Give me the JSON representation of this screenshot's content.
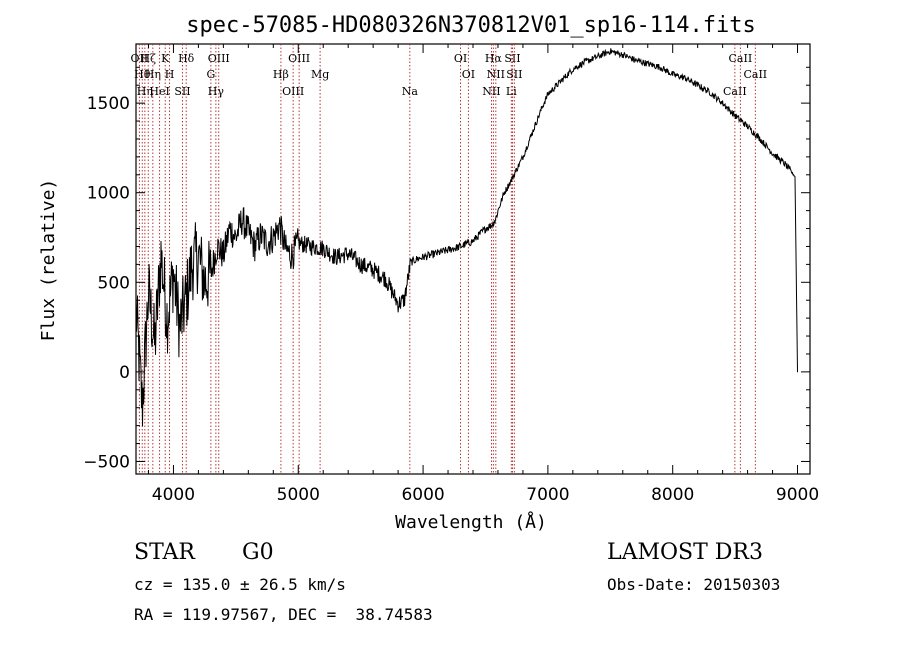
{
  "chart_data": {
    "type": "line",
    "title": "spec-57085-HD080326N370812V01_sp16-114.fits",
    "xlabel": "Wavelength (Å)",
    "ylabel": "Flux (relative)",
    "xlim": [
      3700,
      9100
    ],
    "ylim": [
      -570,
      1830
    ],
    "x_ticks": [
      4000,
      5000,
      6000,
      7000,
      8000,
      9000
    ],
    "x_tick_labels": [
      "4000",
      "5000",
      "6000",
      "7000",
      "8000",
      "9000"
    ],
    "y_ticks": [
      -500,
      0,
      500,
      1000,
      1500
    ],
    "y_tick_labels": [
      "−500",
      "0",
      "500",
      "1000",
      "1500"
    ],
    "series": [
      {
        "name": "spectrum",
        "color": "#000000",
        "x": [
          3700,
          3750,
          3800,
          3850,
          3900,
          3950,
          4000,
          4050,
          4100,
          4150,
          4200,
          4250,
          4300,
          4350,
          4400,
          4450,
          4500,
          4550,
          4600,
          4650,
          4700,
          4750,
          4800,
          4850,
          4900,
          4950,
          5000,
          5100,
          5200,
          5300,
          5400,
          5500,
          5600,
          5700,
          5800,
          5850,
          5900,
          5950,
          6000,
          6100,
          6200,
          6300,
          6400,
          6500,
          6550,
          6580,
          6600,
          6650,
          6700,
          6750,
          6800,
          6850,
          6900,
          6950,
          7000,
          7100,
          7200,
          7300,
          7400,
          7500,
          7600,
          7700,
          7800,
          7900,
          8000,
          8100,
          8200,
          8300,
          8400,
          8500,
          8550,
          8600,
          8700,
          8800,
          8900,
          8980,
          9000
        ],
        "y": [
          350,
          -200,
          450,
          150,
          650,
          300,
          550,
          250,
          400,
          600,
          650,
          500,
          550,
          700,
          650,
          800,
          750,
          850,
          780,
          700,
          760,
          720,
          750,
          820,
          680,
          650,
          720,
          700,
          690,
          640,
          660,
          600,
          570,
          520,
          380,
          400,
          610,
          630,
          640,
          660,
          680,
          700,
          730,
          800,
          820,
          850,
          900,
          1000,
          1060,
          1130,
          1200,
          1290,
          1380,
          1470,
          1550,
          1620,
          1690,
          1730,
          1760,
          1790,
          1770,
          1740,
          1720,
          1700,
          1660,
          1640,
          1600,
          1560,
          1500,
          1430,
          1400,
          1370,
          1300,
          1220,
          1160,
          1090,
          0
        ]
      }
    ],
    "line_markers": [
      {
        "x": 3727,
        "label": "OII"
      },
      {
        "x": 3750,
        "label": "Hθ"
      },
      {
        "x": 3771,
        "label": "Hη"
      },
      {
        "x": 3798,
        "label": "Hζ"
      },
      {
        "x": 3835,
        "label": "Hη"
      },
      {
        "x": 3889,
        "label": "HeI"
      },
      {
        "x": 3934,
        "label": "K"
      },
      {
        "x": 3969,
        "label": "H"
      },
      {
        "x": 4072,
        "label": "SII"
      },
      {
        "x": 4102,
        "label": "Hδ"
      },
      {
        "x": 4300,
        "label": "G"
      },
      {
        "x": 4340,
        "label": "Hγ"
      },
      {
        "x": 4363,
        "label": "OIII"
      },
      {
        "x": 4861,
        "label": "Hβ"
      },
      {
        "x": 4959,
        "label": "OIII"
      },
      {
        "x": 5007,
        "label": "OIII"
      },
      {
        "x": 5175,
        "label": "Mg"
      },
      {
        "x": 5894,
        "label": "Na"
      },
      {
        "x": 6300,
        "label": "OI"
      },
      {
        "x": 6363,
        "label": "OI"
      },
      {
        "x": 6548,
        "label": "NII"
      },
      {
        "x": 6563,
        "label": "Hα"
      },
      {
        "x": 6583,
        "label": "NII"
      },
      {
        "x": 6707,
        "label": "Li"
      },
      {
        "x": 6716,
        "label": "SII"
      },
      {
        "x": 6731,
        "label": "SII"
      },
      {
        "x": 8498,
        "label": "CaII"
      },
      {
        "x": 8542,
        "label": "CaII"
      },
      {
        "x": 8662,
        "label": "CaII"
      }
    ]
  },
  "info": {
    "object_type": "STAR",
    "subclass": "G0",
    "survey": "LAMOST DR3",
    "cz": "cz = 135.0 ± 26.5 km/s",
    "obs_date": "Obs-Date: 20150303",
    "coords": "RA = 119.97567, DEC =  38.74583"
  }
}
